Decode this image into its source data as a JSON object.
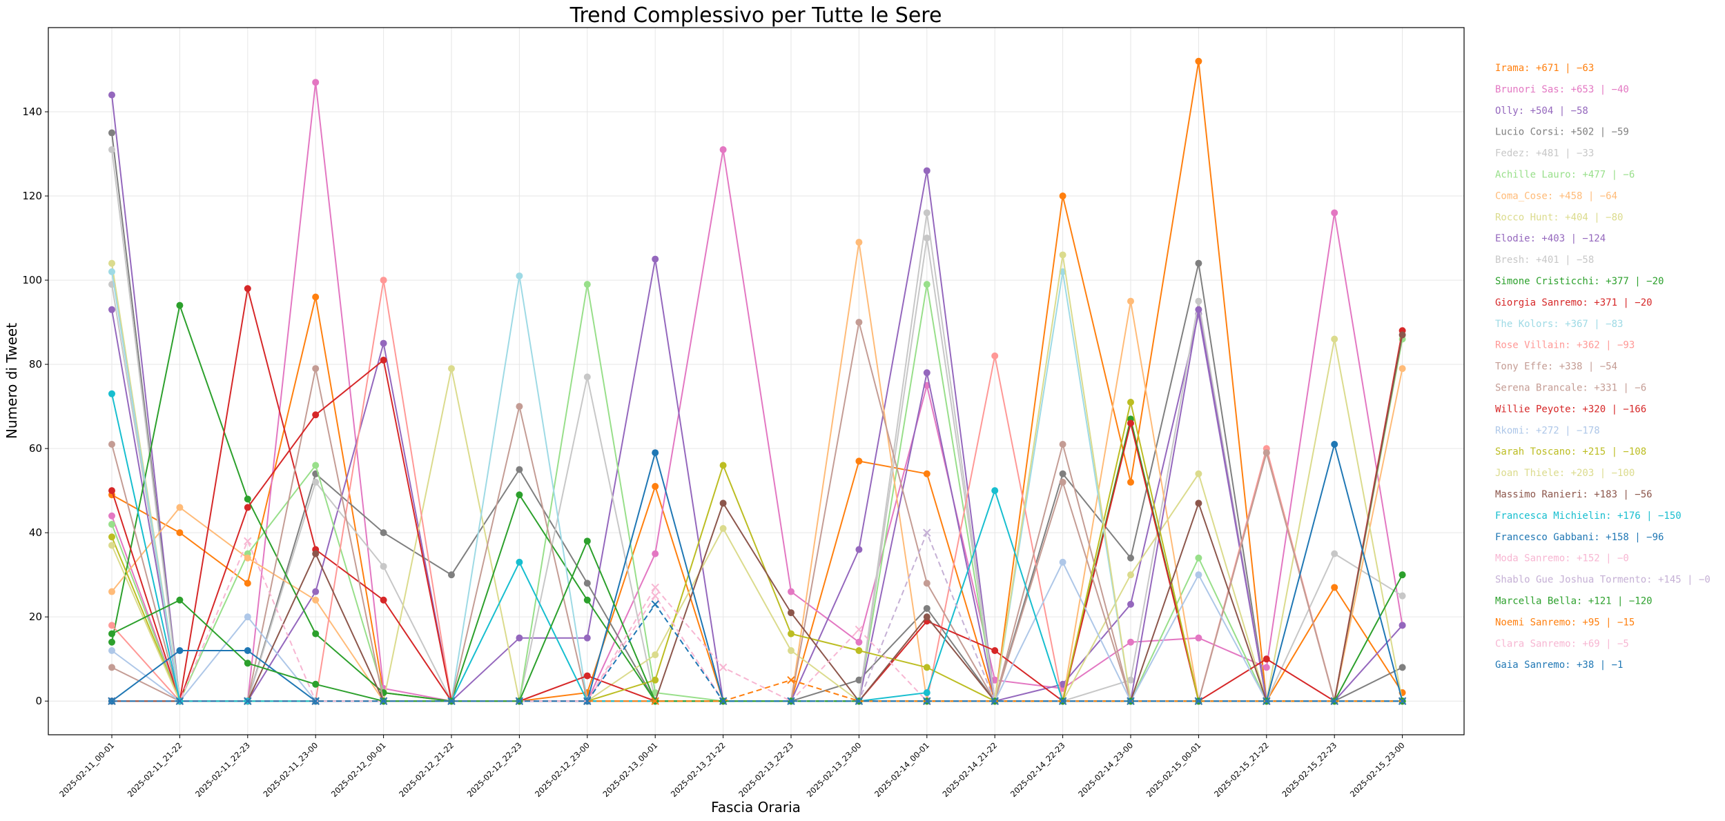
{
  "chart_data": {
    "type": "line",
    "title": "Trend Complessivo per Tutte le Sere",
    "xlabel": "Fascia Oraria",
    "ylabel": "Numero di Tweet",
    "ylim": [
      -8,
      160
    ],
    "yticks": [
      0,
      20,
      40,
      60,
      80,
      100,
      120,
      140
    ],
    "grid": true,
    "legend_position": "right",
    "categories": [
      "2025-02-11_00-01",
      "2025-02-11_21-22",
      "2025-02-11_22-23",
      "2025-02-11_23-00",
      "2025-02-12_00-01",
      "2025-02-12_21-22",
      "2025-02-12_22-23",
      "2025-02-12_23-00",
      "2025-02-13_00-01",
      "2025-02-13_21-22",
      "2025-02-13_22-23",
      "2025-02-13_23-00",
      "2025-02-14_00-01",
      "2025-02-14_21-22",
      "2025-02-14_22-23",
      "2025-02-14_23-00",
      "2025-02-15_00-01",
      "2025-02-15_21-22",
      "2025-02-15_22-23",
      "2025-02-15_23-00"
    ],
    "series": [
      {
        "name": "Irama",
        "summary": "Irama: +671  |  −63",
        "color": "#ff7f0e",
        "dash": false,
        "values": [
          49,
          40,
          28,
          96,
          2,
          0,
          0,
          2,
          51,
          0,
          0,
          57,
          54,
          0,
          120,
          52,
          152,
          0,
          27,
          2
        ]
      },
      {
        "name": "Brunori Sas",
        "summary": "Brunori Sas: +653  |  −40",
        "color": "#e377c2",
        "dash": false,
        "values": [
          44,
          0,
          0,
          147,
          3,
          0,
          0,
          0,
          35,
          131,
          26,
          14,
          75,
          5,
          3,
          14,
          15,
          8,
          116,
          18
        ]
      },
      {
        "name": "Olly",
        "summary": "Olly: +504  |  −58",
        "color": "#9467bd",
        "dash": false,
        "values": [
          144,
          0,
          0,
          26,
          85,
          0,
          15,
          15,
          105,
          0,
          0,
          36,
          126,
          0,
          4,
          23,
          92,
          0,
          0,
          18
        ]
      },
      {
        "name": "Lucio Corsi",
        "summary": "Lucio Corsi: +502  |  −59",
        "color": "#7f7f7f",
        "dash": false,
        "values": [
          135,
          0,
          0,
          54,
          40,
          30,
          55,
          28,
          0,
          0,
          0,
          5,
          22,
          0,
          54,
          34,
          104,
          0,
          0,
          8
        ]
      },
      {
        "name": "Fedez",
        "summary": "Fedez: +481  |  −33",
        "color": "#c7c7c7",
        "dash": false,
        "values": [
          131,
          0,
          0,
          52,
          32,
          0,
          0,
          77,
          0,
          0,
          0,
          0,
          116,
          0,
          0,
          5,
          95,
          0,
          35,
          25
        ]
      },
      {
        "name": "Achille Lauro",
        "summary": "Achille Lauro: +477  |  −6",
        "color": "#98df8a",
        "dash": false,
        "values": [
          42,
          0,
          35,
          56,
          2,
          0,
          0,
          99,
          2,
          0,
          0,
          0,
          99,
          0,
          0,
          0,
          34,
          0,
          0,
          86
        ]
      },
      {
        "name": "Coma_Cose",
        "summary": "Coma_Cose: +458  |  −64",
        "color": "#ffbb78",
        "dash": false,
        "values": [
          26,
          46,
          34,
          24,
          0,
          0,
          0,
          0,
          0,
          0,
          0,
          109,
          0,
          0,
          0,
          95,
          0,
          0,
          0,
          79
        ]
      },
      {
        "name": "Rocco Hunt",
        "summary": "Rocco Hunt: +404  |  −80",
        "color": "#dbdb8d",
        "dash": false,
        "values": [
          104,
          0,
          0,
          0,
          0,
          79,
          0,
          0,
          11,
          41,
          12,
          0,
          0,
          0,
          0,
          30,
          54,
          0,
          86,
          0
        ]
      },
      {
        "name": "Elodie",
        "summary": "Elodie: +403  |  −124",
        "color": "#9467bd",
        "dash": false,
        "values": [
          93,
          0,
          0,
          0,
          0,
          0,
          0,
          0,
          0,
          0,
          0,
          0,
          78,
          0,
          0,
          0,
          93,
          0,
          0,
          0
        ]
      },
      {
        "name": "Bresh",
        "summary": "Bresh: +401  |  −58",
        "color": "#c7c7c7",
        "dash": false,
        "values": [
          99,
          0,
          0,
          0,
          0,
          0,
          0,
          0,
          0,
          0,
          0,
          0,
          110,
          0,
          0,
          0,
          0,
          0,
          0,
          0
        ]
      },
      {
        "name": "Simone Cristicchi",
        "summary": "Simone Cristicchi: +377  |  −20",
        "color": "#2ca02c",
        "dash": false,
        "values": [
          14,
          94,
          48,
          16,
          2,
          0,
          49,
          24,
          0,
          0,
          0,
          0,
          0,
          0,
          0,
          67,
          0,
          0,
          0,
          30
        ]
      },
      {
        "name": "Giorgia Sanremo",
        "summary": "Giorgia Sanremo: +371  |  −20",
        "color": "#d62728",
        "dash": false,
        "values": [
          50,
          0,
          98,
          36,
          24,
          0,
          0,
          0,
          0,
          0,
          0,
          0,
          0,
          0,
          0,
          66,
          0,
          0,
          0,
          88
        ]
      },
      {
        "name": "The Kolors",
        "summary": "The Kolors: +367  |  −83",
        "color": "#9edae5",
        "dash": false,
        "values": [
          102,
          0,
          0,
          0,
          0,
          0,
          101,
          0,
          0,
          0,
          0,
          0,
          0,
          0,
          102,
          0,
          0,
          0,
          0,
          0
        ]
      },
      {
        "name": "Rose Villain",
        "summary": "Rose Villain: +362  |  −93",
        "color": "#ff9896",
        "dash": false,
        "values": [
          18,
          0,
          0,
          0,
          100,
          0,
          0,
          0,
          0,
          0,
          0,
          0,
          0,
          82,
          0,
          0,
          0,
          60,
          0,
          0
        ]
      },
      {
        "name": "Tony Effe",
        "summary": "Tony Effe: +338  |  −54",
        "color": "#c49c94",
        "dash": false,
        "values": [
          61,
          0,
          0,
          79,
          0,
          0,
          70,
          0,
          0,
          0,
          0,
          90,
          28,
          0,
          61,
          0,
          0,
          59,
          0,
          0
        ]
      },
      {
        "name": "Serena Brancale",
        "summary": "Serena Brancale: +331  |  −6",
        "color": "#c49c94",
        "dash": false,
        "values": [
          8,
          0,
          0,
          0,
          0,
          0,
          0,
          0,
          0,
          0,
          0,
          0,
          0,
          0,
          52,
          0,
          0,
          59,
          0,
          0
        ]
      },
      {
        "name": "Willie Peyote",
        "summary": "Willie Peyote: +320  |  −166",
        "color": "#d62728",
        "dash": false,
        "values": [
          0,
          0,
          46,
          68,
          81,
          0,
          0,
          6,
          0,
          0,
          0,
          0,
          19,
          12,
          0,
          0,
          0,
          10,
          0,
          0
        ]
      },
      {
        "name": "Rkomi",
        "summary": "Rkomi: +272  |  −178",
        "color": "#aec7e8",
        "dash": false,
        "values": [
          12,
          0,
          20,
          0,
          0,
          0,
          0,
          0,
          0,
          0,
          0,
          0,
          0,
          0,
          33,
          0,
          30,
          0,
          0,
          0
        ]
      },
      {
        "name": "Sarah Toscano",
        "summary": "Sarah Toscano: +215  |  −108",
        "color": "#bcbd22",
        "dash": false,
        "values": [
          39,
          0,
          0,
          0,
          0,
          0,
          0,
          0,
          5,
          56,
          16,
          12,
          8,
          0,
          0,
          71,
          0,
          0,
          0,
          0
        ]
      },
      {
        "name": "Joan Thiele",
        "summary": "Joan Thiele: +203  |  −100",
        "color": "#dbdb8d",
        "dash": false,
        "values": [
          37,
          0,
          0,
          0,
          0,
          0,
          0,
          0,
          0,
          0,
          0,
          0,
          0,
          0,
          106,
          0,
          0,
          0,
          0,
          0
        ]
      },
      {
        "name": "Massimo Ranieri",
        "summary": "Massimo Ranieri: +183  |  −56",
        "color": "#8c564b",
        "dash": false,
        "values": [
          0,
          0,
          0,
          35,
          0,
          0,
          0,
          0,
          0,
          47,
          21,
          0,
          20,
          0,
          0,
          0,
          47,
          0,
          0,
          87
        ]
      },
      {
        "name": "Francesca Michielin",
        "summary": "Francesca Michielin: +176  |  −150",
        "color": "#17becf",
        "dash": false,
        "values": [
          73,
          0,
          0,
          0,
          0,
          0,
          33,
          0,
          0,
          0,
          0,
          0,
          2,
          50,
          0,
          0,
          0,
          0,
          0,
          0
        ]
      },
      {
        "name": "Francesco Gabbani",
        "summary": "Francesco Gabbani: +158  |  −96",
        "color": "#1f77b4",
        "dash": false,
        "values": [
          0,
          12,
          12,
          0,
          0,
          0,
          0,
          0,
          59,
          0,
          0,
          0,
          0,
          0,
          0,
          0,
          0,
          0,
          61,
          0
        ]
      },
      {
        "name": "Moda Sanremo",
        "summary": "Moda Sanremo: +152  |  −0",
        "color": "#f7b6d2",
        "dash": true,
        "values": [
          0,
          0,
          38,
          0,
          0,
          0,
          0,
          0,
          25,
          0,
          0,
          17,
          0,
          0,
          0,
          0,
          0,
          0,
          0,
          0
        ]
      },
      {
        "name": "Shablo Gue Joshua Tormento",
        "summary": "Shablo Gue Joshua Tormento: +145  |  −0",
        "color": "#c5b0d5",
        "dash": true,
        "values": [
          0,
          0,
          0,
          0,
          0,
          0,
          0,
          0,
          0,
          0,
          0,
          0,
          40,
          0,
          0,
          0,
          0,
          0,
          0,
          0
        ]
      },
      {
        "name": "Marcella Bella",
        "summary": "Marcella Bella: +121  |  −120",
        "color": "#2ca02c",
        "dash": false,
        "values": [
          16,
          24,
          9,
          4,
          0,
          0,
          0,
          38,
          0,
          0,
          0,
          0,
          0,
          0,
          0,
          0,
          0,
          0,
          0,
          0
        ]
      },
      {
        "name": "Noemi Sanremo",
        "summary": "Noemi Sanremo: +95  |  −15",
        "color": "#ff7f0e",
        "dash": true,
        "values": [
          0,
          0,
          0,
          0,
          0,
          0,
          0,
          0,
          0,
          0,
          5,
          0,
          0,
          0,
          0,
          0,
          0,
          0,
          0,
          0
        ]
      },
      {
        "name": "Clara Sanremo",
        "summary": "Clara Sanremo: +69  |  −5",
        "color": "#f7b6d2",
        "dash": true,
        "values": [
          0,
          0,
          0,
          0,
          0,
          0,
          0,
          0,
          27,
          8,
          0,
          0,
          0,
          0,
          0,
          0,
          0,
          0,
          0,
          0
        ]
      },
      {
        "name": "Gaia Sanremo",
        "summary": "Gaia Sanremo: +38  |  −1",
        "color": "#1f77b4",
        "dash": true,
        "values": [
          0,
          0,
          0,
          0,
          0,
          0,
          0,
          0,
          23,
          0,
          0,
          0,
          0,
          0,
          0,
          0,
          0,
          0,
          0,
          0
        ]
      }
    ]
  }
}
